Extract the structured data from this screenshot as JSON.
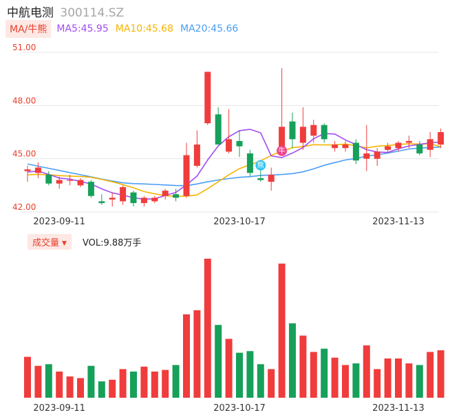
{
  "header": {
    "name": "中航电测",
    "code": "300114.SZ"
  },
  "ma_legend": {
    "toggle_label": "MA/牛熊",
    "items": [
      {
        "text": "MA5:45.95",
        "color": "#a24cf0"
      },
      {
        "text": "MA10:45.68",
        "color": "#f5b400"
      },
      {
        "text": "MA20:45.66",
        "color": "#4a9ef5"
      }
    ]
  },
  "volume_legend": {
    "toggle_label": "成交量",
    "dropdown_icon": "caret-down-icon",
    "value_text": "VOL:9.88万手"
  },
  "badges": [
    {
      "name": "bull-badge",
      "icon": "bull-icon",
      "glyph": "牛",
      "color": "#f0458c",
      "index": 24
    },
    {
      "name": "bear-badge",
      "icon": "bear-icon",
      "glyph": "熊",
      "color": "#33c5f0",
      "index": 22
    }
  ],
  "colors": {
    "up": "#f03c3c",
    "down": "#16a05a",
    "grid": "#e6e6e6",
    "axis_label": "#e8402d",
    "date_label": "#333333"
  },
  "chart_data": {
    "type": "candlestick",
    "price_axis": {
      "ticks": [
        "51.00",
        "48.00",
        "45.00",
        "42.00"
      ],
      "ylim": [
        42.0,
        51.0
      ]
    },
    "x_tick_labels": [
      {
        "index": 3,
        "label": "2023-09-11"
      },
      {
        "index": 20,
        "label": "2023-10-17"
      },
      {
        "index": 35,
        "label": "2023-11-13"
      }
    ],
    "candles": [
      {
        "o": 44.3,
        "c": 44.4,
        "h": 44.6,
        "l": 43.7
      },
      {
        "o": 44.2,
        "c": 44.5,
        "h": 44.8,
        "l": 43.9
      },
      {
        "o": 44.1,
        "c": 43.6,
        "h": 44.3,
        "l": 43.5
      },
      {
        "o": 43.6,
        "c": 43.8,
        "h": 44.0,
        "l": 43.3
      },
      {
        "o": 43.8,
        "c": 43.8,
        "h": 44.1,
        "l": 43.5
      },
      {
        "o": 43.5,
        "c": 43.8,
        "h": 43.9,
        "l": 43.4
      },
      {
        "o": 43.7,
        "c": 42.9,
        "h": 43.8,
        "l": 42.8
      },
      {
        "o": 42.6,
        "c": 42.5,
        "h": 43.0,
        "l": 42.4
      },
      {
        "o": 42.7,
        "c": 42.8,
        "h": 43.1,
        "l": 42.3
      },
      {
        "o": 42.6,
        "c": 43.4,
        "h": 43.5,
        "l": 42.4
      },
      {
        "o": 43.1,
        "c": 42.5,
        "h": 43.2,
        "l": 42.3
      },
      {
        "o": 42.5,
        "c": 42.8,
        "h": 42.9,
        "l": 42.3
      },
      {
        "o": 42.6,
        "c": 42.8,
        "h": 42.9,
        "l": 42.5
      },
      {
        "o": 42.9,
        "c": 43.2,
        "h": 43.3,
        "l": 42.7
      },
      {
        "o": 43.0,
        "c": 42.8,
        "h": 43.3,
        "l": 42.6
      },
      {
        "o": 42.9,
        "c": 45.2,
        "h": 45.9,
        "l": 42.8
      },
      {
        "o": 44.6,
        "c": 45.8,
        "h": 46.6,
        "l": 44.5
      },
      {
        "o": 47.0,
        "c": 49.9,
        "h": 49.9,
        "l": 46.9
      },
      {
        "o": 47.5,
        "c": 45.8,
        "h": 47.9,
        "l": 45.8
      },
      {
        "o": 45.4,
        "c": 46.1,
        "h": 47.8,
        "l": 45.3
      },
      {
        "o": 46.0,
        "c": 45.7,
        "h": 46.6,
        "l": 45.1
      },
      {
        "o": 45.3,
        "c": 44.2,
        "h": 45.5,
        "l": 44.0
      },
      {
        "o": 43.9,
        "c": 43.8,
        "h": 44.6,
        "l": 43.7
      },
      {
        "o": 43.7,
        "c": 44.1,
        "h": 44.5,
        "l": 43.2
      },
      {
        "o": 45.6,
        "c": 46.8,
        "h": 50.1,
        "l": 45.6
      },
      {
        "o": 47.1,
        "c": 46.1,
        "h": 47.6,
        "l": 45.6
      },
      {
        "o": 45.9,
        "c": 46.8,
        "h": 47.9,
        "l": 45.5
      },
      {
        "o": 46.3,
        "c": 46.9,
        "h": 47.2,
        "l": 45.9
      },
      {
        "o": 46.9,
        "c": 46.1,
        "h": 47.0,
        "l": 45.9
      },
      {
        "o": 45.6,
        "c": 45.8,
        "h": 46.0,
        "l": 45.4
      },
      {
        "o": 45.6,
        "c": 45.8,
        "h": 46.0,
        "l": 45.4
      },
      {
        "o": 45.9,
        "c": 44.9,
        "h": 46.1,
        "l": 44.7
      },
      {
        "o": 45.0,
        "c": 45.3,
        "h": 46.9,
        "l": 44.3
      },
      {
        "o": 45.0,
        "c": 45.4,
        "h": 45.6,
        "l": 44.6
      },
      {
        "o": 45.5,
        "c": 45.7,
        "h": 45.9,
        "l": 45.3
      },
      {
        "o": 45.6,
        "c": 45.9,
        "h": 46.0,
        "l": 45.4
      },
      {
        "o": 45.9,
        "c": 46.0,
        "h": 46.3,
        "l": 45.6
      },
      {
        "o": 45.8,
        "c": 45.3,
        "h": 46.0,
        "l": 45.2
      },
      {
        "o": 45.5,
        "c": 46.1,
        "h": 46.5,
        "l": 45.1
      },
      {
        "o": 45.8,
        "c": 46.5,
        "h": 46.7,
        "l": 45.6
      }
    ],
    "ma5": [
      44.25,
      44.3,
      44.12,
      43.91,
      43.85,
      43.72,
      43.58,
      43.3,
      43.08,
      42.95,
      42.8,
      42.72,
      42.74,
      42.93,
      43.1,
      43.53,
      44.02,
      44.93,
      45.72,
      46.24,
      46.58,
      46.66,
      46.46,
      45.16,
      45.06,
      45.32,
      45.63,
      46.13,
      46.42,
      46.39,
      46.06,
      45.79,
      45.51,
      45.38,
      45.35,
      45.56,
      45.72,
      45.81,
      45.9,
      45.95
    ],
    "ma10": [
      44.1,
      44.12,
      44.1,
      44.05,
      44.02,
      44.0,
      43.95,
      43.84,
      43.7,
      43.54,
      43.36,
      43.15,
      43.02,
      42.92,
      42.88,
      42.89,
      42.96,
      43.31,
      43.7,
      44.1,
      44.44,
      44.66,
      44.88,
      45.19,
      45.42,
      45.62,
      45.69,
      45.79,
      45.78,
      45.78,
      45.83,
      45.73,
      45.61,
      45.71,
      45.74,
      45.81,
      45.84,
      45.83,
      45.84,
      45.68
    ],
    "ma20": [
      44.7,
      44.58,
      44.46,
      44.34,
      44.22,
      44.1,
      43.98,
      43.86,
      43.74,
      43.64,
      43.6,
      43.58,
      43.55,
      43.52,
      43.49,
      43.48,
      43.58,
      43.7,
      43.8,
      43.88,
      43.95,
      43.99,
      44.06,
      44.08,
      44.11,
      44.16,
      44.26,
      44.43,
      44.63,
      44.78,
      44.93,
      45.02,
      45.15,
      45.22,
      45.32,
      45.43,
      45.55,
      45.6,
      45.63,
      45.66
    ],
    "volume": [
      5.0,
      3.9,
      4.1,
      3.2,
      2.6,
      2.4,
      3.9,
      2.0,
      2.2,
      3.5,
      3.2,
      3.8,
      3.2,
      3.4,
      4.0,
      10.2,
      10.7,
      17.0,
      8.9,
      7.2,
      5.5,
      5.7,
      4.1,
      3.5,
      16.4,
      9.1,
      7.6,
      5.6,
      6.0,
      4.9,
      4.0,
      4.2,
      6.4,
      3.5,
      4.8,
      4.8,
      4.2,
      4.0,
      5.6,
      5.8
    ],
    "volume_scale_max": 17.5
  }
}
